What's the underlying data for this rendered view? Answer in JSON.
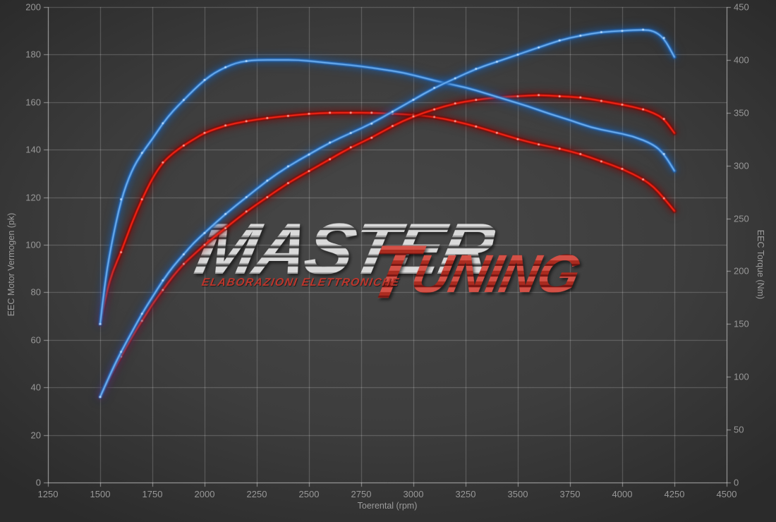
{
  "axes": {
    "x": {
      "label": "Toerental (rpm)",
      "min": 1250,
      "max": 4500,
      "ticks": [
        1250,
        1500,
        1750,
        2000,
        2250,
        2500,
        2750,
        3000,
        3250,
        3500,
        3750,
        4000,
        4250,
        4500
      ]
    },
    "y_left": {
      "label": "EEC Motor Vermogen (pk)",
      "min": 0,
      "max": 200,
      "ticks": [
        0,
        20,
        40,
        60,
        80,
        100,
        120,
        140,
        160,
        180,
        200
      ]
    },
    "y_right": {
      "label": "EEC Torque (Nm)",
      "min": 0,
      "max": 450,
      "ticks": [
        0,
        50,
        100,
        150,
        200,
        250,
        300,
        350,
        400,
        450
      ]
    }
  },
  "watermark": {
    "master": "MASTER",
    "tuning_initial": "T",
    "tuning_rest": "UNING",
    "subtitle": "ELABORAZIONI ELETTRONICHE"
  },
  "colors": {
    "background": "#3d3d3d",
    "grid": "rgba(255,255,255,0.24)",
    "axis_line": "rgba(235,235,235,0.55)",
    "tick_label": "#989898",
    "curve_blue_core": "#79b8f5",
    "curve_blue_mid": "#3c87d8",
    "curve_blue_glow": "#1c5fae",
    "curve_red_core": "#ff2a1a",
    "curve_red_mid": "#c41208",
    "curve_red_glow": "#7e0600",
    "marker_blue": "#bcdeff",
    "marker_red": "#ffa49a",
    "watermark_gray": "#b5b5b5",
    "watermark_red": "#c0302a"
  },
  "chart_data": {
    "type": "line",
    "xlabel": "Toerental (rpm)",
    "x_range": [
      1250,
      4500
    ],
    "y_left_label": "EEC Motor Vermogen (pk)",
    "y_left_range": [
      0,
      200
    ],
    "y_right_label": "EEC Torque (Nm)",
    "y_right_range": [
      0,
      450
    ],
    "grid": true,
    "legend": "none",
    "series": [
      {
        "name": "torque_red",
        "axis": "right",
        "unit": "Nm",
        "color": "red",
        "points": [
          [
            1500,
            150
          ],
          [
            1530,
            180
          ],
          [
            1560,
            200
          ],
          [
            1600,
            218
          ],
          [
            1650,
            245
          ],
          [
            1700,
            268
          ],
          [
            1750,
            288
          ],
          [
            1800,
            303
          ],
          [
            1850,
            312
          ],
          [
            1900,
            319
          ],
          [
            1950,
            325
          ],
          [
            2000,
            331
          ],
          [
            2100,
            338
          ],
          [
            2200,
            342
          ],
          [
            2300,
            345
          ],
          [
            2400,
            347
          ],
          [
            2500,
            349
          ],
          [
            2600,
            350
          ],
          [
            2700,
            350
          ],
          [
            2800,
            350
          ],
          [
            2900,
            349
          ],
          [
            3000,
            348
          ],
          [
            3100,
            346
          ],
          [
            3200,
            342
          ],
          [
            3300,
            337
          ],
          [
            3400,
            331
          ],
          [
            3500,
            325
          ],
          [
            3600,
            320
          ],
          [
            3700,
            316
          ],
          [
            3800,
            311
          ],
          [
            3900,
            304
          ],
          [
            4000,
            297
          ],
          [
            4100,
            287
          ],
          [
            4150,
            280
          ],
          [
            4200,
            269
          ],
          [
            4250,
            257
          ]
        ]
      },
      {
        "name": "power_red",
        "axis": "left",
        "unit": "pk",
        "color": "red",
        "points": [
          [
            1500,
            36
          ],
          [
            1550,
            45
          ],
          [
            1600,
            53
          ],
          [
            1650,
            61
          ],
          [
            1700,
            68
          ],
          [
            1750,
            75
          ],
          [
            1800,
            81
          ],
          [
            1850,
            87
          ],
          [
            1900,
            92
          ],
          [
            1950,
            96
          ],
          [
            2000,
            100
          ],
          [
            2100,
            107
          ],
          [
            2200,
            114
          ],
          [
            2300,
            120
          ],
          [
            2400,
            126
          ],
          [
            2500,
            131
          ],
          [
            2600,
            136
          ],
          [
            2700,
            141
          ],
          [
            2800,
            145
          ],
          [
            2900,
            150
          ],
          [
            3000,
            154
          ],
          [
            3100,
            157
          ],
          [
            3200,
            159.5
          ],
          [
            3300,
            161
          ],
          [
            3400,
            162
          ],
          [
            3500,
            162.5
          ],
          [
            3600,
            163
          ],
          [
            3700,
            162.5
          ],
          [
            3800,
            162
          ],
          [
            3900,
            160.5
          ],
          [
            4000,
            159
          ],
          [
            4100,
            157
          ],
          [
            4150,
            155.5
          ],
          [
            4200,
            153
          ],
          [
            4250,
            147
          ]
        ]
      },
      {
        "name": "torque_blue",
        "axis": "right",
        "unit": "Nm",
        "color": "blue",
        "points": [
          [
            1500,
            150
          ],
          [
            1520,
            185
          ],
          [
            1550,
            222
          ],
          [
            1600,
            268
          ],
          [
            1650,
            295
          ],
          [
            1700,
            312
          ],
          [
            1750,
            325
          ],
          [
            1800,
            340
          ],
          [
            1850,
            352
          ],
          [
            1900,
            362
          ],
          [
            1950,
            372
          ],
          [
            2000,
            381
          ],
          [
            2050,
            388
          ],
          [
            2100,
            393
          ],
          [
            2150,
            397
          ],
          [
            2200,
            399
          ],
          [
            2250,
            400
          ],
          [
            2350,
            400
          ],
          [
            2450,
            400
          ],
          [
            2550,
            398
          ],
          [
            2650,
            396
          ],
          [
            2750,
            394
          ],
          [
            2850,
            391
          ],
          [
            2950,
            388
          ],
          [
            3050,
            383
          ],
          [
            3150,
            378
          ],
          [
            3250,
            374
          ],
          [
            3350,
            368
          ],
          [
            3450,
            362
          ],
          [
            3550,
            356
          ],
          [
            3650,
            349
          ],
          [
            3750,
            343
          ],
          [
            3850,
            336
          ],
          [
            3950,
            332
          ],
          [
            4050,
            328
          ],
          [
            4150,
            320
          ],
          [
            4200,
            311
          ],
          [
            4250,
            295
          ]
        ]
      },
      {
        "name": "power_blue",
        "axis": "left",
        "unit": "pk",
        "color": "blue",
        "points": [
          [
            1500,
            36
          ],
          [
            1550,
            46
          ],
          [
            1600,
            55
          ],
          [
            1650,
            63
          ],
          [
            1700,
            71
          ],
          [
            1750,
            78
          ],
          [
            1800,
            85
          ],
          [
            1850,
            91
          ],
          [
            1900,
            96
          ],
          [
            1950,
            101
          ],
          [
            2000,
            105
          ],
          [
            2100,
            113
          ],
          [
            2200,
            120
          ],
          [
            2300,
            127
          ],
          [
            2400,
            133
          ],
          [
            2500,
            138
          ],
          [
            2600,
            143
          ],
          [
            2700,
            147
          ],
          [
            2800,
            151
          ],
          [
            2900,
            156
          ],
          [
            3000,
            161
          ],
          [
            3100,
            166
          ],
          [
            3200,
            170
          ],
          [
            3300,
            174
          ],
          [
            3400,
            177
          ],
          [
            3500,
            180
          ],
          [
            3600,
            183
          ],
          [
            3700,
            186
          ],
          [
            3800,
            188
          ],
          [
            3900,
            189.5
          ],
          [
            4000,
            190
          ],
          [
            4100,
            190.5
          ],
          [
            4150,
            190
          ],
          [
            4200,
            187
          ],
          [
            4250,
            179
          ]
        ]
      }
    ]
  }
}
